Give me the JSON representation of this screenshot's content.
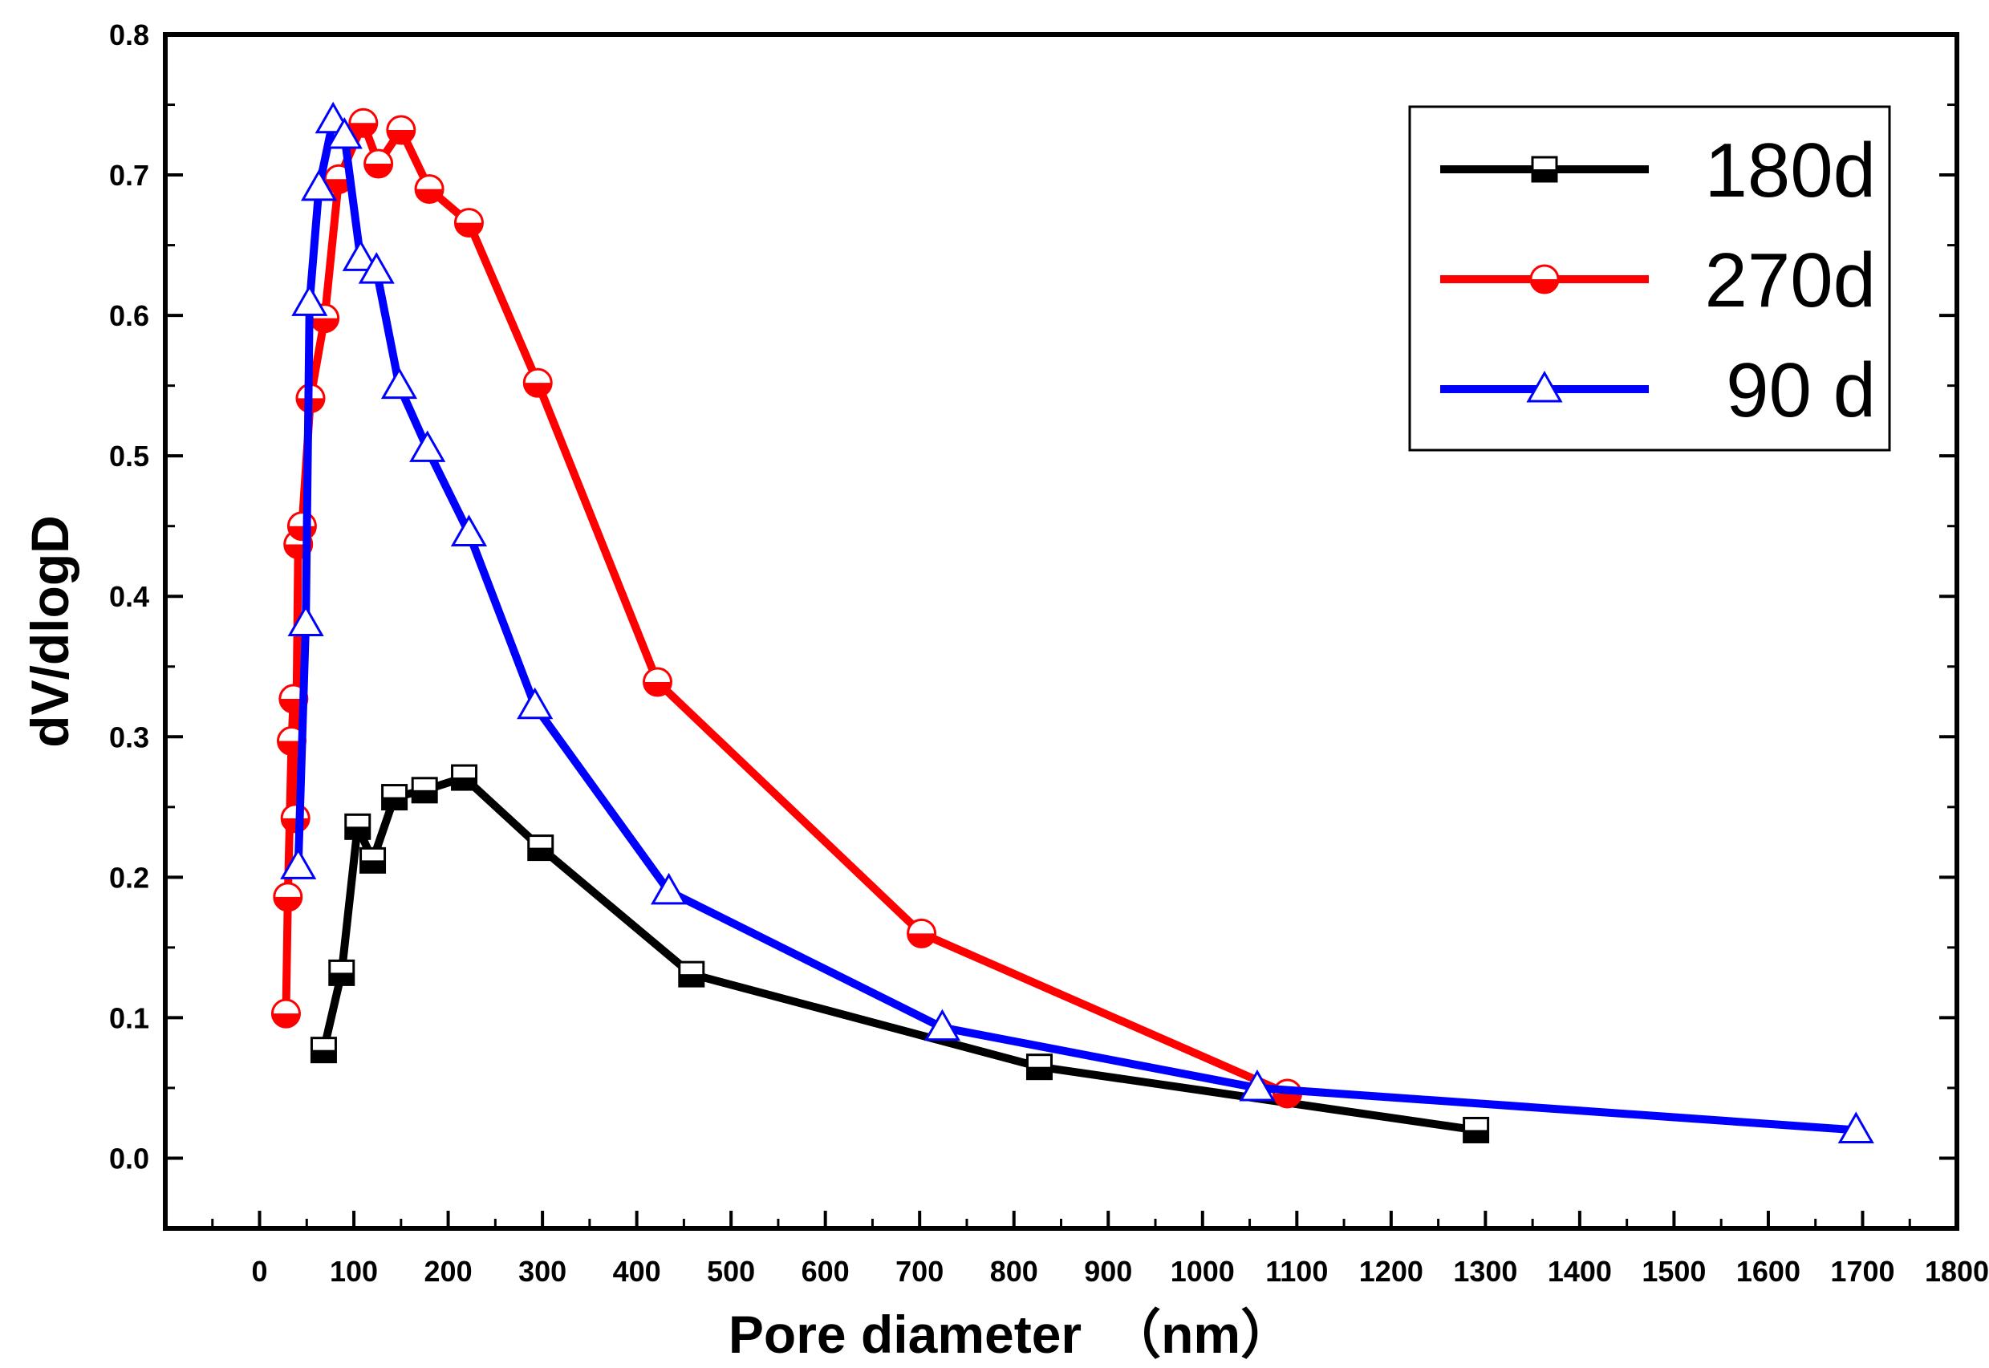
{
  "chart_data": {
    "type": "line",
    "title": "",
    "xlabel": "Pore diameter　（nm）",
    "ylabel": "dV/dlogD",
    "xlim": [
      -100,
      1800
    ],
    "ylim": [
      -0.05,
      0.8
    ],
    "xticks": [
      0,
      100,
      200,
      300,
      400,
      500,
      600,
      700,
      800,
      900,
      1000,
      1100,
      1200,
      1300,
      1400,
      1500,
      1600,
      1700,
      1800
    ],
    "yticks": [
      0.0,
      0.1,
      0.2,
      0.3,
      0.4,
      0.5,
      0.6,
      0.7,
      0.8
    ],
    "ytick_labels": [
      "0.0",
      "0.1",
      "0.2",
      "0.3",
      "0.4",
      "0.5",
      "0.6",
      "0.7",
      "0.8"
    ],
    "legend_position": "top-right",
    "series": [
      {
        "name": "180d",
        "color": "#000000",
        "marker": "square-half",
        "x": [
          68,
          87,
          104,
          120,
          143,
          175,
          217,
          298,
          458,
          827,
          1290
        ],
        "y": [
          0.077,
          0.132,
          0.236,
          0.212,
          0.257,
          0.262,
          0.271,
          0.221,
          0.131,
          0.065,
          0.02
        ]
      },
      {
        "name": "270d",
        "color": "#ff0000",
        "marker": "circle-half",
        "x": [
          28,
          30,
          34,
          36,
          38,
          41,
          45,
          54,
          69,
          84,
          110,
          126,
          150,
          180,
          222,
          295,
          422,
          702,
          1090
        ],
        "y": [
          0.103,
          0.186,
          0.297,
          0.327,
          0.242,
          0.437,
          0.45,
          0.541,
          0.598,
          0.697,
          0.737,
          0.708,
          0.732,
          0.69,
          0.666,
          0.552,
          0.339,
          0.16,
          0.046
        ]
      },
      {
        "name": " 90 d",
        "color": "#0000ff",
        "marker": "triangle",
        "x": [
          41,
          49,
          53,
          63,
          78,
          90,
          107,
          124,
          148,
          178,
          222,
          292,
          434,
          724,
          1058,
          1693
        ],
        "y": [
          0.208,
          0.381,
          0.609,
          0.691,
          0.739,
          0.728,
          0.641,
          0.632,
          0.55,
          0.505,
          0.445,
          0.322,
          0.19,
          0.093,
          0.05,
          0.02
        ]
      }
    ]
  }
}
